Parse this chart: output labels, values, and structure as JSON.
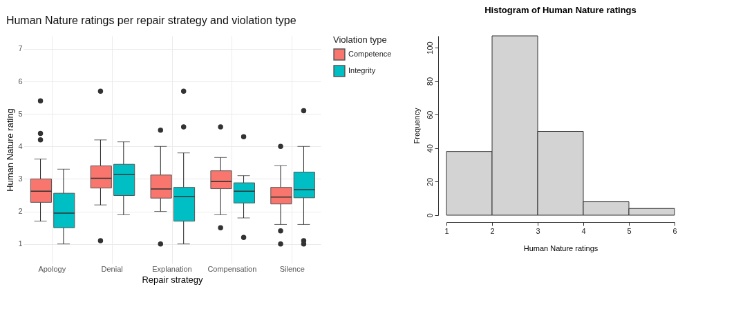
{
  "chart_data": [
    {
      "type": "box",
      "title": "Human Nature ratings per repair strategy and violation type",
      "xlabel": "Repair strategy",
      "ylabel": "Human Nature rating",
      "legend_title": "Violation type",
      "legend": "right",
      "grid": true,
      "categories": [
        "Apology",
        "Denial",
        "Explanation",
        "Compensation",
        "Silence"
      ],
      "ylim": [
        0.4,
        7.4
      ],
      "yticks": [
        1,
        2,
        3,
        4,
        5,
        6,
        7
      ],
      "series": [
        {
          "name": "Competence",
          "color": "#f8766d",
          "boxes": [
            {
              "low": 1.7,
              "q1": 2.28,
              "median": 2.62,
              "q3": 3.0,
              "high": 3.61,
              "outliers": [
                5.4,
                4.4,
                4.2
              ]
            },
            {
              "low": 2.2,
              "q1": 2.72,
              "median": 3.02,
              "q3": 3.4,
              "high": 4.2,
              "outliers": [
                5.7,
                1.1
              ]
            },
            {
              "low": 2.0,
              "q1": 2.41,
              "median": 2.69,
              "q3": 3.12,
              "high": 4.0,
              "outliers": [
                4.5,
                1.0
              ]
            },
            {
              "low": 1.9,
              "q1": 2.7,
              "median": 2.92,
              "q3": 3.25,
              "high": 3.66,
              "outliers": [
                4.6,
                1.5
              ]
            },
            {
              "low": 1.6,
              "q1": 2.23,
              "median": 2.44,
              "q3": 2.74,
              "high": 3.41,
              "outliers": [
                4.0,
                1.4,
                1.0
              ]
            }
          ]
        },
        {
          "name": "Integrity",
          "color": "#00bfc4",
          "boxes": [
            {
              "low": 1.0,
              "q1": 1.5,
              "median": 1.95,
              "q3": 2.56,
              "high": 3.3
            },
            {
              "low": 1.9,
              "q1": 2.49,
              "median": 3.14,
              "q3": 3.45,
              "high": 4.14
            },
            {
              "low": 1.0,
              "q1": 1.7,
              "median": 2.46,
              "q3": 2.74,
              "high": 3.8,
              "outliers": [
                5.7,
                4.6
              ]
            },
            {
              "low": 1.8,
              "q1": 2.26,
              "median": 2.62,
              "q3": 2.88,
              "high": 3.1,
              "outliers": [
                4.3,
                1.2
              ]
            },
            {
              "low": 1.6,
              "q1": 2.42,
              "median": 2.67,
              "q3": 3.21,
              "high": 4.0,
              "outliers": [
                5.1,
                1.1,
                1.0
              ]
            }
          ]
        }
      ]
    },
    {
      "type": "histogram",
      "title": "Histogram of Human Nature ratings",
      "xlabel": "Human Nature ratings",
      "ylabel": "Frequency",
      "bins": [
        1,
        2,
        3,
        4,
        5,
        6
      ],
      "values": [
        38,
        107,
        50,
        8,
        4
      ],
      "color": "#d3d3d3",
      "xlim": [
        1,
        6
      ],
      "xticks": [
        1,
        2,
        3,
        4,
        5,
        6
      ],
      "ylim": [
        0,
        107
      ],
      "yticks": [
        0,
        20,
        40,
        60,
        80,
        100
      ]
    }
  ]
}
